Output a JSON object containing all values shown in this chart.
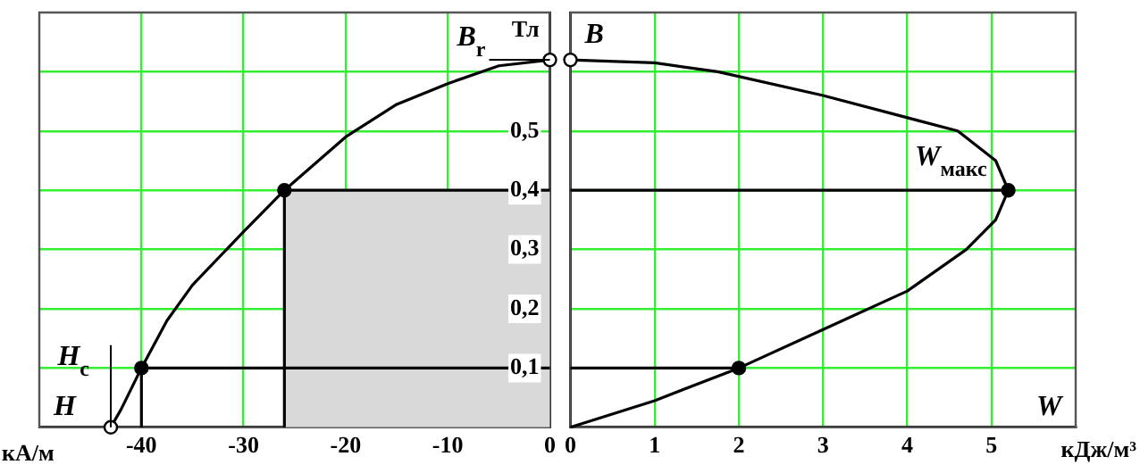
{
  "chart_data": [
    {
      "type": "line",
      "xlabel": "кА/м",
      "ylabel": "Тл",
      "xlim": [
        -50,
        0
      ],
      "xticks": [
        -40,
        -30,
        -20,
        -10,
        0
      ],
      "ylim": [
        0,
        0.7
      ],
      "yticks": [
        {
          "value": 0.1,
          "label": "0,1"
        },
        {
          "value": 0.2,
          "label": "0,2"
        },
        {
          "value": 0.3,
          "label": "0,3"
        },
        {
          "value": 0.4,
          "label": "0,4"
        },
        {
          "value": 0.5,
          "label": "0,5"
        },
        {
          "value": 0.6,
          "label": null
        }
      ],
      "grid": true,
      "annotations": [
        {
          "text": "B$_{r}$",
          "x": 0,
          "y": 0.62
        },
        {
          "text": "H$_{c}$",
          "x": -43,
          "y": 0
        },
        "H"
      ],
      "series": [
        {
          "type": "scatter",
          "color": "#ffffff",
          "marker": "circle",
          "x": [
            -43,
            0
          ],
          "values": [
            0,
            0.62
          ]
        },
        {
          "type": "scatter",
          "color": "#000000",
          "marker": "circle",
          "x": [
            -40,
            -26
          ],
          "values": [
            0.1,
            0.4
          ]
        },
        {
          "color": "#000000",
          "marker": "none",
          "x": [
            -43,
            -42,
            -40,
            -37.5,
            -35,
            -30,
            -26,
            -20,
            -15,
            -10,
            -5,
            0
          ],
          "values": [
            0,
            0.03,
            0.1,
            0.18,
            0.24,
            0.33,
            0.4,
            0.49,
            0.545,
            0.58,
            0.61,
            0.62
          ]
        },
        {
          "color": "#000000",
          "marker": "none",
          "x": [
            -40,
            -40,
            0
          ],
          "values": [
            0,
            0.1,
            0.1
          ]
        },
        {
          "type": "area",
          "color": "#d9d9d9",
          "marker": "none",
          "x": [
            -26,
            -26,
            0
          ],
          "values": [
            0,
            0.4,
            0.4
          ]
        }
      ]
    },
    {
      "type": "line",
      "xlabel": "кДж/м³",
      "xlim": [
        0,
        6
      ],
      "xticks": [
        0,
        1,
        2,
        3,
        4,
        5
      ],
      "ylim": [
        0,
        0.7
      ],
      "yticks": [
        0.1,
        0.2,
        0.3,
        0.4,
        0.5,
        0.6
      ],
      "grid": true,
      "tick_labels": "x",
      "annotations": [
        {
          "text": "W$_{макс}$",
          "x": 5.2,
          "y": 0.4
        },
        "B",
        "W"
      ],
      "series": [
        {
          "type": "scatter",
          "color": "#ffffff",
          "marker": "circle",
          "x": [
            0
          ],
          "values": [
            0.62
          ]
        },
        {
          "type": "scatter",
          "color": "#000000",
          "marker": "circle",
          "x": [
            2,
            5.2
          ],
          "values": [
            0.1,
            0.4
          ]
        },
        {
          "color": "#000000",
          "marker": "none",
          "x": [
            0,
            1,
            2,
            3,
            4,
            4.7,
            5.05,
            5.2,
            5.05,
            4.6,
            3,
            1.75,
            1,
            0
          ],
          "values": [
            0,
            0.045,
            0.1,
            0.165,
            0.23,
            0.3,
            0.35,
            0.4,
            0.45,
            0.5,
            0.56,
            0.6,
            0.615,
            0.62
          ]
        },
        {
          "color": "#000000",
          "marker": "none",
          "x": [
            0,
            2
          ],
          "values": [
            0.1,
            0.1
          ]
        },
        {
          "color": "#000000",
          "marker": "none",
          "x": [
            0,
            5.2
          ],
          "values": [
            0.4,
            0.4
          ]
        }
      ]
    }
  ]
}
